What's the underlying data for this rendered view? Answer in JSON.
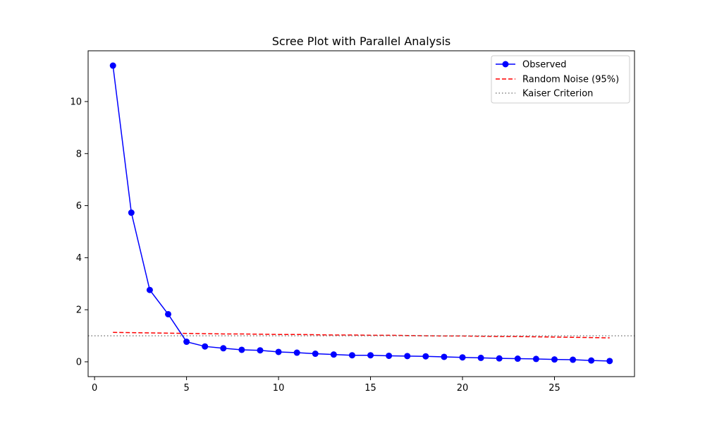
{
  "chart_data": {
    "type": "line",
    "title": "Scree Plot with Parallel Analysis",
    "xlabel": "",
    "ylabel": "",
    "xlim": [
      -0.35,
      29.35
    ],
    "ylim": [
      -0.57,
      11.95
    ],
    "xticks": [
      0,
      5,
      10,
      15,
      20,
      25
    ],
    "yticks": [
      0,
      2,
      4,
      6,
      8,
      10
    ],
    "grid": false,
    "legend_position": "top-right",
    "series": [
      {
        "name": "Observed",
        "style": "solid-markers",
        "color": "#0000ff",
        "x": [
          1,
          2,
          3,
          4,
          5,
          6,
          7,
          8,
          9,
          10,
          11,
          12,
          13,
          14,
          15,
          16,
          17,
          18,
          19,
          20,
          21,
          22,
          23,
          24,
          25,
          26,
          27,
          28
        ],
        "values": [
          11.38,
          5.73,
          2.76,
          1.83,
          0.77,
          0.59,
          0.52,
          0.46,
          0.44,
          0.38,
          0.35,
          0.31,
          0.28,
          0.25,
          0.25,
          0.23,
          0.22,
          0.21,
          0.19,
          0.17,
          0.15,
          0.13,
          0.12,
          0.11,
          0.09,
          0.08,
          0.05,
          0.03
        ]
      },
      {
        "name": "Random Noise (95%)",
        "style": "dashed",
        "color": "#ff0000",
        "x": [
          1,
          2,
          3,
          4,
          5,
          6,
          7,
          8,
          9,
          10,
          11,
          12,
          13,
          14,
          15,
          16,
          17,
          18,
          19,
          20,
          21,
          22,
          23,
          24,
          25,
          26,
          27,
          28
        ],
        "values": [
          1.13,
          1.12,
          1.11,
          1.1,
          1.09,
          1.08,
          1.07,
          1.07,
          1.06,
          1.05,
          1.05,
          1.04,
          1.03,
          1.03,
          1.02,
          1.02,
          1.01,
          1.0,
          0.99,
          0.99,
          0.98,
          0.97,
          0.97,
          0.96,
          0.95,
          0.94,
          0.93,
          0.92
        ]
      },
      {
        "name": "Kaiser Criterion",
        "style": "dotted-hline",
        "color": "#808080",
        "y": 1
      }
    ]
  }
}
